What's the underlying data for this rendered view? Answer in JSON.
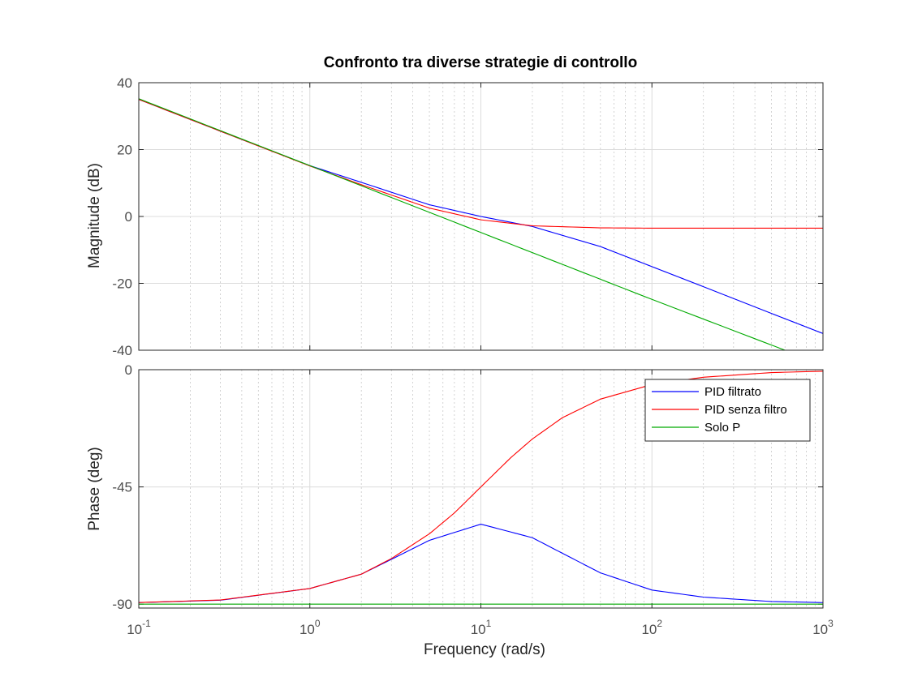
{
  "chart_data": {
    "type": "line",
    "title": "Confronto tra diverse strategie di controllo",
    "xlabel": "Frequency  (rad/s)",
    "xscale": "log",
    "xlim": [
      0.1,
      1000
    ],
    "x_ticks": [
      {
        "base": "10",
        "exp": "-1"
      },
      {
        "base": "10",
        "exp": "0"
      },
      {
        "base": "10",
        "exp": "1"
      },
      {
        "base": "10",
        "exp": "2"
      },
      {
        "base": "10",
        "exp": "3"
      }
    ],
    "grid": "on",
    "legend_position": "top-right, phase plot",
    "colors": {
      "PID filtrato": "#0000ff",
      "PID senza filtro": "#ff0000",
      "Solo P": "#00aa00"
    },
    "subplots": [
      {
        "name": "magnitude",
        "ylabel": "Magnitude (dB)",
        "ylim": [
          -40,
          40
        ],
        "y_ticks": [
          "40",
          "20",
          "0",
          "-20",
          "-40"
        ],
        "series": [
          {
            "name": "PID filtrato",
            "x": [
              0.1,
              0.3,
              1,
              2,
              5,
              10,
              20,
              50,
              100,
              200,
              500,
              1000
            ],
            "y": [
              35.0,
              25.5,
              15.2,
              10.2,
              3.5,
              0.0,
              -3.0,
              -9.0,
              -15.0,
              -21.0,
              -29.0,
              -35.0
            ]
          },
          {
            "name": "PID senza filtro",
            "x": [
              0.1,
              0.3,
              1,
              2,
              5,
              10,
              20,
              50,
              100,
              200,
              500,
              1000
            ],
            "y": [
              35.0,
              25.5,
              15.1,
              9.5,
              2.5,
              -1.0,
              -2.8,
              -3.4,
              -3.5,
              -3.5,
              -3.5,
              -3.5
            ]
          },
          {
            "name": "Solo P",
            "x": [
              0.1,
              1,
              10,
              100,
              600
            ],
            "y": [
              35.2,
              15.2,
              -4.8,
              -24.8,
              -40.0
            ]
          }
        ]
      },
      {
        "name": "phase",
        "ylabel": "Phase (deg)",
        "ylim": [
          -91.5,
          0
        ],
        "y_ticks": [
          "0",
          "-45",
          "-90"
        ],
        "series": [
          {
            "name": "PID filtrato",
            "x": [
              0.1,
              0.3,
              1,
              2,
              3,
              5,
              10,
              20,
              30,
              50,
              100,
              200,
              500,
              1000
            ],
            "y": [
              -89.4,
              -88.5,
              -84.0,
              -78.5,
              -72.8,
              -65.5,
              -59.3,
              -64.5,
              -70.5,
              -78.0,
              -84.6,
              -87.3,
              -89.0,
              -89.4
            ]
          },
          {
            "name": "PID senza filtro",
            "x": [
              0.1,
              0.3,
              1,
              2,
              3,
              5,
              7,
              10,
              15,
              20,
              30,
              50,
              100,
              200,
              500,
              1000
            ],
            "y": [
              -89.4,
              -88.4,
              -84.0,
              -78.5,
              -72.5,
              -63.0,
              -55.0,
              -45.0,
              -33.7,
              -26.6,
              -18.4,
              -11.3,
              -5.7,
              -2.9,
              -1.1,
              -0.6
            ]
          },
          {
            "name": "Solo P",
            "x": [
              0.1,
              1000
            ],
            "y": [
              -90.0,
              -90.0
            ]
          }
        ]
      }
    ]
  }
}
